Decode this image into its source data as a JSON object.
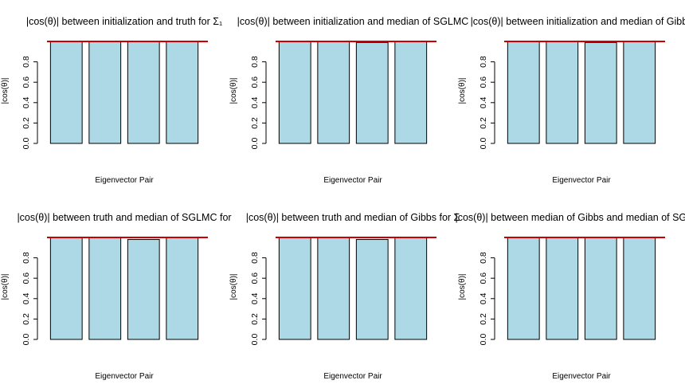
{
  "chart_data": [
    {
      "type": "bar",
      "title": "|cos(θ)| between initialization and truth for Σ₁",
      "xlabel": "Eigenvector Pair",
      "ylabel": "|cos(θ)|",
      "ylim": [
        0,
        1
      ],
      "yticks": [
        "0.0",
        "0.2",
        "0.4",
        "0.6",
        "0.8"
      ],
      "values": [
        1.0,
        1.0,
        1.0,
        1.0
      ],
      "reference_line": 1.0
    },
    {
      "type": "bar",
      "title": "|cos(θ)| between initialization and median of SGLMC",
      "xlabel": "Eigenvector Pair",
      "ylabel": "|cos(θ)|",
      "ylim": [
        0,
        1
      ],
      "yticks": [
        "0.0",
        "0.2",
        "0.4",
        "0.6",
        "0.8"
      ],
      "values": [
        1.0,
        1.0,
        0.99,
        1.0
      ],
      "reference_line": 1.0
    },
    {
      "type": "bar",
      "title": "|cos(θ)| between initialization and median of Gibbs",
      "xlabel": "Eigenvector Pair",
      "ylabel": "|cos(θ)|",
      "ylim": [
        0,
        1
      ],
      "yticks": [
        "0.0",
        "0.2",
        "0.4",
        "0.6",
        "0.8"
      ],
      "values": [
        1.0,
        1.0,
        0.99,
        1.0
      ],
      "reference_line": 1.0
    },
    {
      "type": "bar",
      "title": "|cos(θ)| between truth and median of SGLMC for",
      "xlabel": "Eigenvector Pair",
      "ylabel": "|cos(θ)|",
      "ylim": [
        0,
        1
      ],
      "yticks": [
        "0.0",
        "0.2",
        "0.4",
        "0.6",
        "0.8"
      ],
      "values": [
        1.0,
        1.0,
        0.98,
        1.0
      ],
      "reference_line": 1.0
    },
    {
      "type": "bar",
      "title": "|cos(θ)| between truth and median of Gibbs for Σ",
      "xlabel": "Eigenvector Pair",
      "ylabel": "|cos(θ)|",
      "ylim": [
        0,
        1
      ],
      "yticks": [
        "0.0",
        "0.2",
        "0.4",
        "0.6",
        "0.8"
      ],
      "values": [
        1.0,
        1.0,
        0.98,
        1.0
      ],
      "reference_line": 1.0
    },
    {
      "type": "bar",
      "title": "|cos(θ)| between median of Gibbs and median of SGLMC",
      "xlabel": "Eigenvector Pair",
      "ylabel": "|cos(θ)|",
      "ylim": [
        0,
        1
      ],
      "yticks": [
        "0.0",
        "0.2",
        "0.4",
        "0.6",
        "0.8"
      ],
      "values": [
        1.0,
        1.0,
        1.0,
        1.0
      ],
      "reference_line": 1.0
    }
  ],
  "colors": {
    "bar_fill": "#add8e6",
    "bar_stroke": "#000000",
    "reference_line": "#cc0000"
  }
}
